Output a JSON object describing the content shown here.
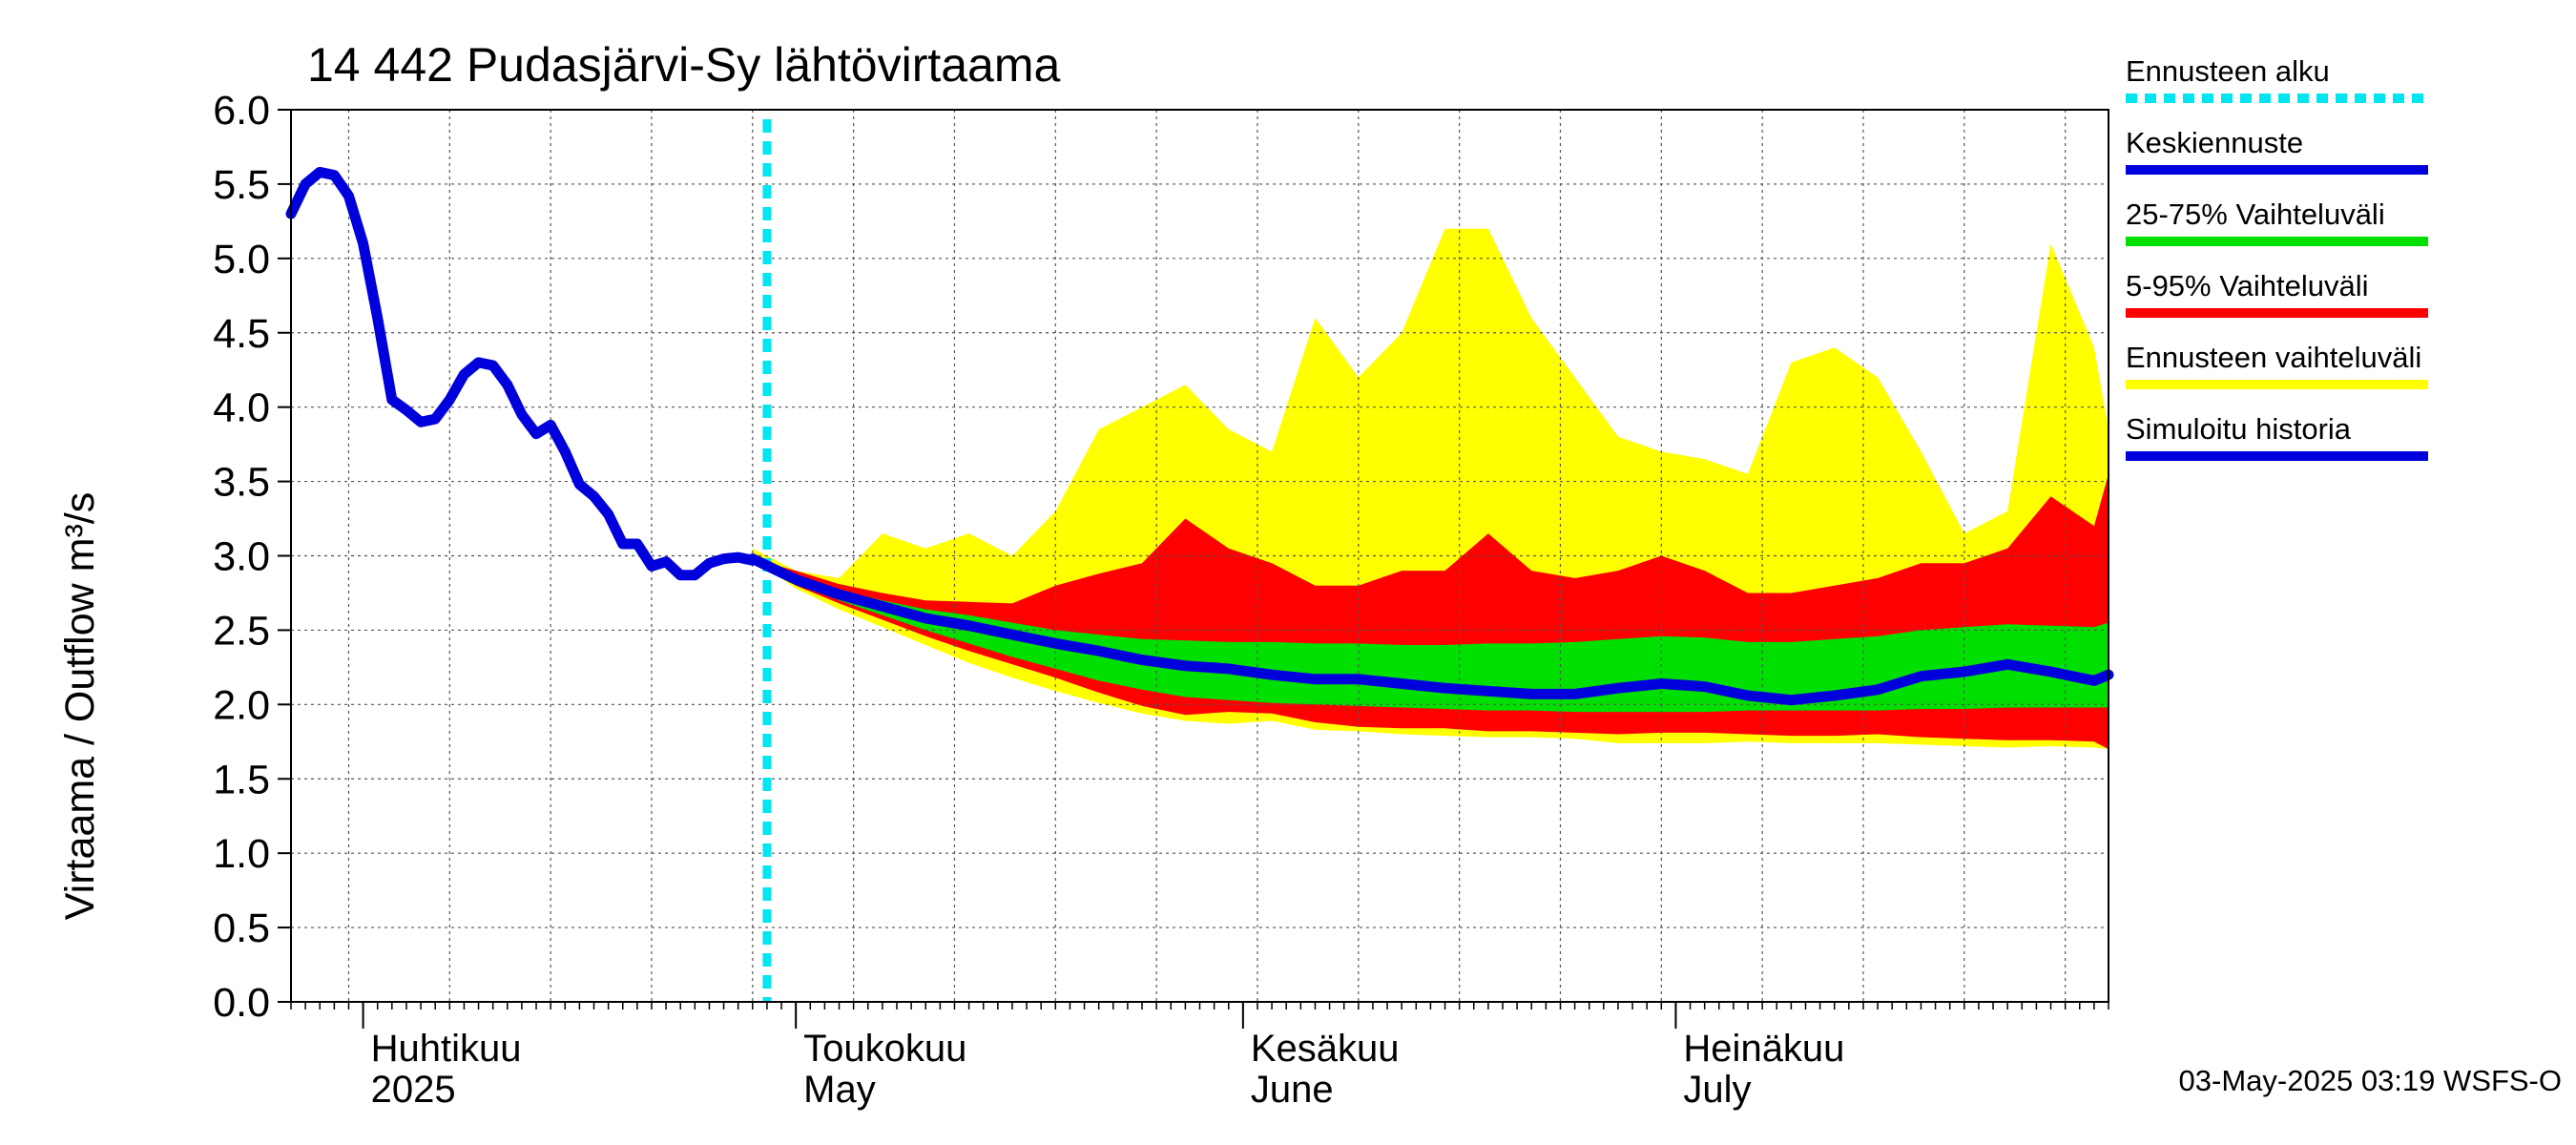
{
  "chart_data": {
    "type": "area",
    "title": "14 442 Pudasjärvi-Sy lähtövirtaama",
    "ylabel": "Virtaama / Outflow    m³/s",
    "xlabel": "",
    "ylim": [
      0,
      6
    ],
    "yticks": [
      "0.0",
      "0.5",
      "1.0",
      "1.5",
      "2.0",
      "2.5",
      "3.0",
      "3.5",
      "4.0",
      "4.5",
      "5.0",
      "5.5",
      "6.0"
    ],
    "xlim": [
      "2025-03-27",
      "2025-07-31"
    ],
    "grid": true,
    "months": [
      {
        "fi": "Huhtikuu",
        "en": "2025",
        "date": "2025-04-01"
      },
      {
        "fi": "Toukokuu",
        "en": "May",
        "date": "2025-05-01"
      },
      {
        "fi": "Kesäkuu",
        "en": "June",
        "date": "2025-06-01"
      },
      {
        "fi": "Heinäkuu",
        "en": "July",
        "date": "2025-07-01"
      }
    ],
    "forecast_start": "2025-04-29",
    "legend_position": "right",
    "legend": [
      {
        "label": "Ennusteen alku",
        "color": "#00e6f0",
        "style": "dotted"
      },
      {
        "label": "Keskiennuste",
        "color": "#0000dd",
        "style": "solid"
      },
      {
        "label": "25-75% Vaihteluväli",
        "color": "#00e000",
        "style": "solid"
      },
      {
        "label": "5-95% Vaihteluväli",
        "color": "#ff0000",
        "style": "solid"
      },
      {
        "label": "Ennusteen vaihteluväli",
        "color": "#ffff00",
        "style": "solid"
      },
      {
        "label": "Simuloitu historia",
        "color": "#0000dd",
        "style": "solid"
      }
    ],
    "history": {
      "name": "Simuloitu historia",
      "points": [
        [
          "2025-03-27",
          5.3
        ],
        [
          "2025-03-28",
          5.5
        ],
        [
          "2025-03-29",
          5.58
        ],
        [
          "2025-03-30",
          5.56
        ],
        [
          "2025-03-31",
          5.42
        ],
        [
          "2025-04-01",
          5.1
        ],
        [
          "2025-04-02",
          4.6
        ],
        [
          "2025-04-03",
          4.05
        ],
        [
          "2025-04-04",
          3.98
        ],
        [
          "2025-04-05",
          3.9
        ],
        [
          "2025-04-06",
          3.92
        ],
        [
          "2025-04-07",
          4.05
        ],
        [
          "2025-04-08",
          4.22
        ],
        [
          "2025-04-09",
          4.3
        ],
        [
          "2025-04-10",
          4.28
        ],
        [
          "2025-04-11",
          4.15
        ],
        [
          "2025-04-12",
          3.95
        ],
        [
          "2025-04-13",
          3.82
        ],
        [
          "2025-04-14",
          3.88
        ],
        [
          "2025-04-15",
          3.7
        ],
        [
          "2025-04-16",
          3.48
        ],
        [
          "2025-04-17",
          3.4
        ],
        [
          "2025-04-18",
          3.28
        ],
        [
          "2025-04-19",
          3.08
        ],
        [
          "2025-04-20",
          3.08
        ],
        [
          "2025-04-21",
          2.93
        ],
        [
          "2025-04-22",
          2.96
        ],
        [
          "2025-04-23",
          2.87
        ],
        [
          "2025-04-24",
          2.87
        ],
        [
          "2025-04-25",
          2.95
        ],
        [
          "2025-04-26",
          2.98
        ],
        [
          "2025-04-27",
          2.99
        ],
        [
          "2025-04-28",
          2.97
        ]
      ]
    },
    "forecast": {
      "dates": [
        "2025-04-28",
        "2025-05-01",
        "2025-05-04",
        "2025-05-07",
        "2025-05-10",
        "2025-05-13",
        "2025-05-16",
        "2025-05-19",
        "2025-05-22",
        "2025-05-25",
        "2025-05-28",
        "2025-05-31",
        "2025-06-03",
        "2025-06-06",
        "2025-06-09",
        "2025-06-12",
        "2025-06-15",
        "2025-06-18",
        "2025-06-21",
        "2025-06-24",
        "2025-06-27",
        "2025-06-30",
        "2025-07-03",
        "2025-07-06",
        "2025-07-09",
        "2025-07-12",
        "2025-07-15",
        "2025-07-18",
        "2025-07-21",
        "2025-07-24",
        "2025-07-27",
        "2025-07-30",
        "2025-07-31"
      ],
      "median": [
        2.98,
        2.84,
        2.74,
        2.66,
        2.58,
        2.53,
        2.47,
        2.41,
        2.36,
        2.3,
        2.26,
        2.24,
        2.2,
        2.17,
        2.17,
        2.14,
        2.11,
        2.09,
        2.07,
        2.07,
        2.11,
        2.14,
        2.12,
        2.06,
        2.03,
        2.06,
        2.1,
        2.19,
        2.22,
        2.27,
        2.22,
        2.16,
        2.2
      ],
      "p25": [
        2.98,
        2.82,
        2.7,
        2.6,
        2.5,
        2.41,
        2.32,
        2.24,
        2.16,
        2.1,
        2.05,
        2.03,
        2.01,
        2.0,
        1.99,
        1.98,
        1.97,
        1.96,
        1.96,
        1.95,
        1.95,
        1.95,
        1.95,
        1.96,
        1.96,
        1.96,
        1.96,
        1.97,
        1.97,
        1.98,
        1.98,
        1.98,
        1.98
      ],
      "p75": [
        2.98,
        2.86,
        2.77,
        2.7,
        2.64,
        2.6,
        2.55,
        2.5,
        2.47,
        2.44,
        2.43,
        2.42,
        2.42,
        2.41,
        2.41,
        2.4,
        2.4,
        2.41,
        2.41,
        2.42,
        2.44,
        2.46,
        2.45,
        2.42,
        2.42,
        2.44,
        2.46,
        2.5,
        2.52,
        2.54,
        2.53,
        2.52,
        2.55
      ],
      "p5": [
        2.98,
        2.8,
        2.68,
        2.57,
        2.46,
        2.36,
        2.27,
        2.18,
        2.08,
        1.99,
        1.93,
        1.95,
        1.94,
        1.88,
        1.85,
        1.84,
        1.84,
        1.82,
        1.82,
        1.81,
        1.8,
        1.81,
        1.81,
        1.8,
        1.79,
        1.79,
        1.8,
        1.78,
        1.77,
        1.76,
        1.76,
        1.75,
        1.7
      ],
      "p95": [
        2.98,
        2.9,
        2.81,
        2.75,
        2.7,
        2.69,
        2.68,
        2.8,
        2.88,
        2.95,
        3.25,
        3.05,
        2.95,
        2.8,
        2.8,
        2.9,
        2.9,
        3.15,
        2.9,
        2.85,
        2.9,
        3.0,
        2.9,
        2.75,
        2.75,
        2.8,
        2.85,
        2.95,
        2.95,
        3.05,
        3.4,
        3.2,
        3.55
      ],
      "min": [
        2.98,
        2.78,
        2.64,
        2.52,
        2.4,
        2.28,
        2.18,
        2.09,
        2.01,
        1.94,
        1.89,
        1.87,
        1.89,
        1.83,
        1.82,
        1.8,
        1.79,
        1.78,
        1.78,
        1.77,
        1.74,
        1.74,
        1.74,
        1.75,
        1.74,
        1.74,
        1.74,
        1.73,
        1.72,
        1.71,
        1.72,
        1.71,
        1.7
      ],
      "max": [
        3.05,
        2.9,
        2.85,
        3.15,
        3.05,
        3.15,
        3.0,
        3.3,
        3.85,
        4.0,
        4.15,
        3.85,
        3.7,
        4.6,
        4.2,
        4.5,
        5.2,
        5.2,
        4.6,
        4.2,
        3.8,
        3.7,
        3.65,
        3.55,
        4.3,
        4.4,
        4.2,
        3.7,
        3.15,
        3.3,
        5.1,
        4.4,
        3.85
      ]
    }
  },
  "footer": "03-May-2025 03:19 WSFS-O"
}
